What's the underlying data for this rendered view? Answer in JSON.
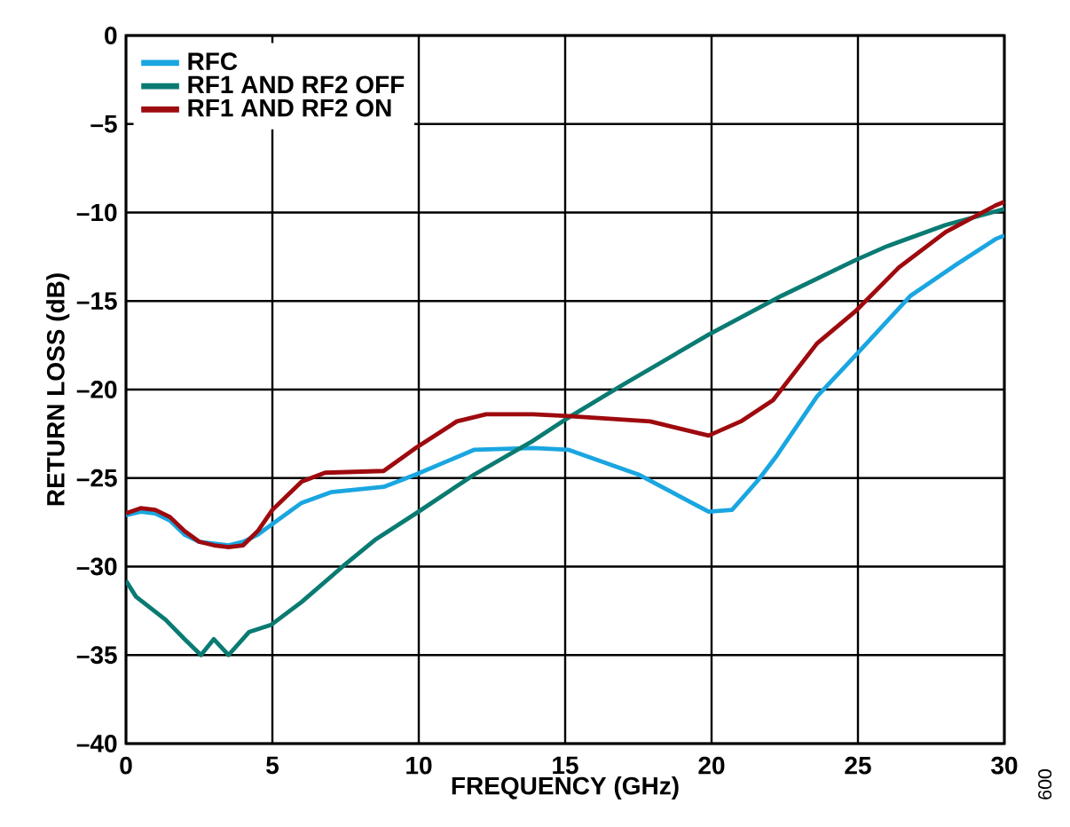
{
  "chart_data": {
    "type": "line",
    "xlabel": "FREQUENCY (GHz)",
    "ylabel": "RETURN LOSS (dB)",
    "xlim": [
      0,
      30
    ],
    "xticks": [
      0,
      5,
      10,
      15,
      20,
      25,
      30
    ],
    "ylim": [
      -40,
      0
    ],
    "yticks": [
      {
        "value": -40,
        "label": "–40"
      },
      {
        "value": -35,
        "label": "–35"
      },
      {
        "value": -30,
        "label": "–30"
      },
      {
        "value": -25,
        "label": "–25"
      },
      {
        "value": -20,
        "label": "–20"
      },
      {
        "value": -15,
        "label": "–15"
      },
      {
        "value": -10,
        "label": "–10"
      },
      {
        "value": -5,
        "label": "–5"
      },
      0
    ],
    "grid": true,
    "legend": "top left",
    "marker": "none",
    "line_style": "solid",
    "annotations": [
      "009"
    ],
    "series": [
      {
        "name": "RFC",
        "color": "#1aa6e0",
        "x": [
          0,
          0.5,
          1,
          1.5,
          2,
          2.5,
          3,
          3.5,
          4,
          4.5,
          5,
          5.5,
          6,
          7,
          8.8,
          9.9,
          11.9,
          13.9,
          15.1,
          17.5,
          19.9,
          20.7,
          21.6,
          22.2,
          23.6,
          24.9,
          26.8,
          28.4,
          29.7,
          30
        ],
        "values": [
          -27.1,
          -26.9,
          -27.0,
          -27.4,
          -28.2,
          -28.6,
          -28.7,
          -28.8,
          -28.6,
          -28.2,
          -27.6,
          -27.0,
          -26.4,
          -25.8,
          -25.5,
          -24.8,
          -23.4,
          -23.3,
          -23.4,
          -24.8,
          -26.9,
          -26.8,
          -25.1,
          -23.8,
          -20.4,
          -18.1,
          -14.7,
          -12.9,
          -11.5,
          -11.3
        ]
      },
      {
        "name": "RF1 AND RF2 OFF",
        "color": "#0a7b72",
        "x": [
          0,
          0.34,
          1.35,
          2.0,
          2.56,
          3.0,
          3.5,
          4.2,
          4.95,
          6.0,
          7.4,
          8.5,
          9.9,
          11.9,
          13.9,
          15.0,
          16.9,
          19.9,
          22.4,
          24.9,
          26.0,
          28.0,
          30
        ],
        "values": [
          -30.8,
          -31.7,
          -33.0,
          -34.1,
          -35.0,
          -34.1,
          -35.0,
          -33.7,
          -33.3,
          -32.0,
          -30.0,
          -28.5,
          -27.0,
          -24.8,
          -22.9,
          -21.7,
          -19.8,
          -16.9,
          -14.7,
          -12.7,
          -11.9,
          -10.7,
          -9.8
        ]
      },
      {
        "name": "RF1 AND RF2 ON",
        "color": "#9e0a0e",
        "x": [
          0,
          0.5,
          1,
          1.5,
          2,
          2.5,
          3,
          3.5,
          4,
          4.5,
          5,
          6.0,
          6.8,
          8.8,
          9.9,
          11.3,
          12.3,
          13.9,
          15.1,
          17.9,
          19.9,
          21.0,
          22.1,
          23.6,
          24.9,
          26.4,
          28.0,
          29.7,
          30
        ],
        "values": [
          -27.0,
          -26.7,
          -26.8,
          -27.2,
          -28.0,
          -28.6,
          -28.8,
          -28.9,
          -28.8,
          -28.0,
          -26.8,
          -25.2,
          -24.7,
          -24.6,
          -23.3,
          -21.8,
          -21.4,
          -21.4,
          -21.5,
          -21.8,
          -22.6,
          -21.8,
          -20.6,
          -17.4,
          -15.6,
          -13.1,
          -11.1,
          -9.6,
          -9.4
        ]
      }
    ]
  }
}
